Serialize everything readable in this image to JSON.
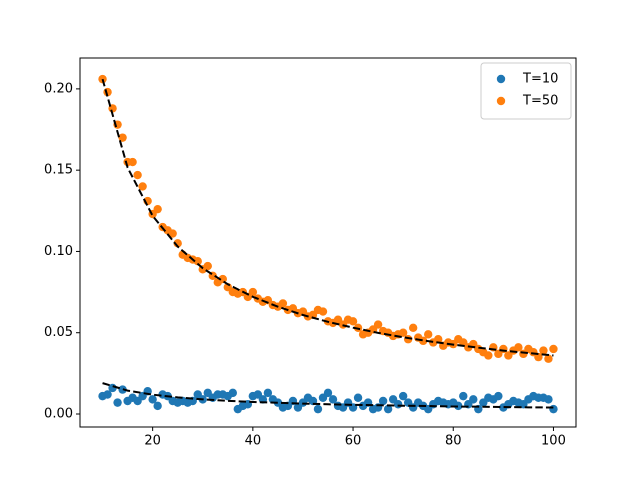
{
  "chart_data": {
    "type": "scatter",
    "x": [
      10,
      11,
      12,
      13,
      14,
      15,
      16,
      17,
      18,
      19,
      20,
      21,
      22,
      23,
      24,
      25,
      26,
      27,
      28,
      29,
      30,
      31,
      32,
      33,
      34,
      35,
      36,
      37,
      38,
      39,
      40,
      41,
      42,
      43,
      44,
      45,
      46,
      47,
      48,
      49,
      50,
      51,
      52,
      53,
      54,
      55,
      56,
      57,
      58,
      59,
      60,
      61,
      62,
      63,
      64,
      65,
      66,
      67,
      68,
      69,
      70,
      71,
      72,
      73,
      74,
      75,
      76,
      77,
      78,
      79,
      80,
      81,
      82,
      83,
      84,
      85,
      86,
      87,
      88,
      89,
      90,
      91,
      92,
      93,
      94,
      95,
      96,
      97,
      98,
      99,
      100
    ],
    "series": [
      {
        "name": "T=10",
        "color": "#1f77b4",
        "values": [
          0.011,
          0.012,
          0.016,
          0.007,
          0.015,
          0.008,
          0.01,
          0.008,
          0.011,
          0.014,
          0.009,
          0.005,
          0.012,
          0.011,
          0.008,
          0.007,
          0.008,
          0.007,
          0.008,
          0.012,
          0.009,
          0.013,
          0.01,
          0.012,
          0.012,
          0.011,
          0.013,
          0.003,
          0.005,
          0.006,
          0.011,
          0.012,
          0.009,
          0.013,
          0.009,
          0.007,
          0.004,
          0.005,
          0.008,
          0.004,
          0.007,
          0.01,
          0.008,
          0.003,
          0.01,
          0.013,
          0.009,
          0.005,
          0.004,
          0.007,
          0.004,
          0.01,
          0.005,
          0.007,
          0.003,
          0.004,
          0.008,
          0.003,
          0.009,
          0.006,
          0.011,
          0.007,
          0.004,
          0.007,
          0.005,
          0.003,
          0.006,
          0.008,
          0.007,
          0.006,
          0.007,
          0.005,
          0.011,
          0.006,
          0.009,
          0.003,
          0.007,
          0.01,
          0.009,
          0.011,
          0.004,
          0.006,
          0.008,
          0.007,
          0.006,
          0.009,
          0.011,
          0.01,
          0.01,
          0.009,
          0.003
        ]
      },
      {
        "name": "T=50",
        "color": "#ff7f0e",
        "values": [
          0.206,
          0.198,
          0.188,
          0.178,
          0.17,
          0.155,
          0.155,
          0.147,
          0.14,
          0.131,
          0.123,
          0.126,
          0.115,
          0.113,
          0.111,
          0.105,
          0.098,
          0.096,
          0.095,
          0.094,
          0.089,
          0.091,
          0.085,
          0.081,
          0.083,
          0.078,
          0.075,
          0.074,
          0.075,
          0.072,
          0.075,
          0.071,
          0.069,
          0.07,
          0.067,
          0.066,
          0.068,
          0.064,
          0.065,
          0.062,
          0.063,
          0.06,
          0.061,
          0.064,
          0.063,
          0.057,
          0.056,
          0.058,
          0.055,
          0.058,
          0.057,
          0.053,
          0.049,
          0.05,
          0.052,
          0.055,
          0.051,
          0.05,
          0.048,
          0.049,
          0.05,
          0.046,
          0.053,
          0.047,
          0.045,
          0.049,
          0.044,
          0.046,
          0.042,
          0.044,
          0.043,
          0.046,
          0.044,
          0.041,
          0.043,
          0.04,
          0.038,
          0.036,
          0.041,
          0.037,
          0.04,
          0.036,
          0.039,
          0.041,
          0.037,
          0.04,
          0.038,
          0.035,
          0.039,
          0.034,
          0.04
        ]
      }
    ],
    "fits": [
      {
        "color": "#000000",
        "x": [
          10,
          15,
          20,
          25,
          30,
          35,
          40,
          45,
          50,
          55,
          60,
          65,
          70,
          75,
          80,
          85,
          90,
          95,
          100
        ],
        "values": [
          0.019,
          0.0144,
          0.0119,
          0.0102,
          0.009,
          0.0081,
          0.0074,
          0.0069,
          0.0064,
          0.006,
          0.0056,
          0.0054,
          0.0051,
          0.0049,
          0.0046,
          0.0045,
          0.0043,
          0.0041,
          0.004
        ]
      },
      {
        "color": "#000000",
        "x": [
          10,
          15,
          20,
          25,
          30,
          35,
          40,
          45,
          50,
          55,
          60,
          65,
          70,
          75,
          80,
          85,
          90,
          95,
          100
        ],
        "values": [
          0.206,
          0.1516,
          0.1219,
          0.103,
          0.0897,
          0.0798,
          0.0721,
          0.066,
          0.0609,
          0.0567,
          0.0531,
          0.0499,
          0.0472,
          0.0448,
          0.0427,
          0.0408,
          0.039,
          0.0375,
          0.036
        ]
      }
    ],
    "xlim": [
      5.5,
      104.5
    ],
    "ylim": [
      -0.008,
      0.219
    ],
    "xticks": [
      20,
      40,
      60,
      80,
      100
    ],
    "yticks": [
      {
        "value": 0,
        "label": "0.00"
      },
      {
        "value": 0.05,
        "label": "0.05"
      },
      {
        "value": 0.1,
        "label": "0.10"
      },
      {
        "value": 0.15,
        "label": "0.15"
      },
      {
        "value": 0.2,
        "label": "0.20"
      }
    ],
    "legend": "upper right"
  }
}
